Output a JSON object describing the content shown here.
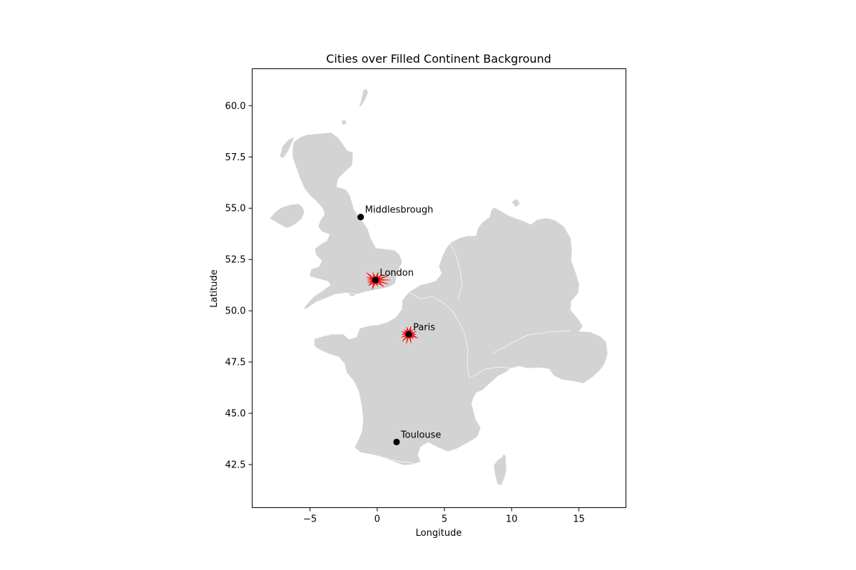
{
  "chart_data": {
    "type": "scatter",
    "title": "Cities over Filled Continent Background",
    "xlabel": "Longitude",
    "ylabel": "Latitude",
    "xlim": [
      -9.3,
      18.5
    ],
    "ylim": [
      40.4,
      61.8
    ],
    "xticks": [
      -5,
      0,
      5,
      10,
      15
    ],
    "yticks": [
      42.5,
      45.0,
      47.5,
      50.0,
      52.5,
      55.0,
      57.5,
      60.0
    ],
    "xtick_labels": [
      "−5",
      "0",
      "5",
      "10",
      "15"
    ],
    "ytick_labels": [
      "42.5",
      "45.0",
      "47.5",
      "50.0",
      "52.5",
      "55.0",
      "57.5",
      "60.0"
    ],
    "grid": false,
    "background": {
      "land_color": "#d3d3d3",
      "border_color": "#ffffff"
    },
    "cities": [
      {
        "name": "Middlesbrough",
        "lon": -1.23,
        "lat": 54.57
      },
      {
        "name": "London",
        "lon": -0.13,
        "lat": 51.5
      },
      {
        "name": "Paris",
        "lon": 2.35,
        "lat": 48.85
      },
      {
        "name": "Toulouse",
        "lon": 1.44,
        "lat": 43.6
      }
    ],
    "urban_areas": [
      {
        "city": "London",
        "color": "#ff0000"
      },
      {
        "city": "Paris",
        "color": "#ff0000"
      }
    ],
    "marker_color": "#000000"
  }
}
